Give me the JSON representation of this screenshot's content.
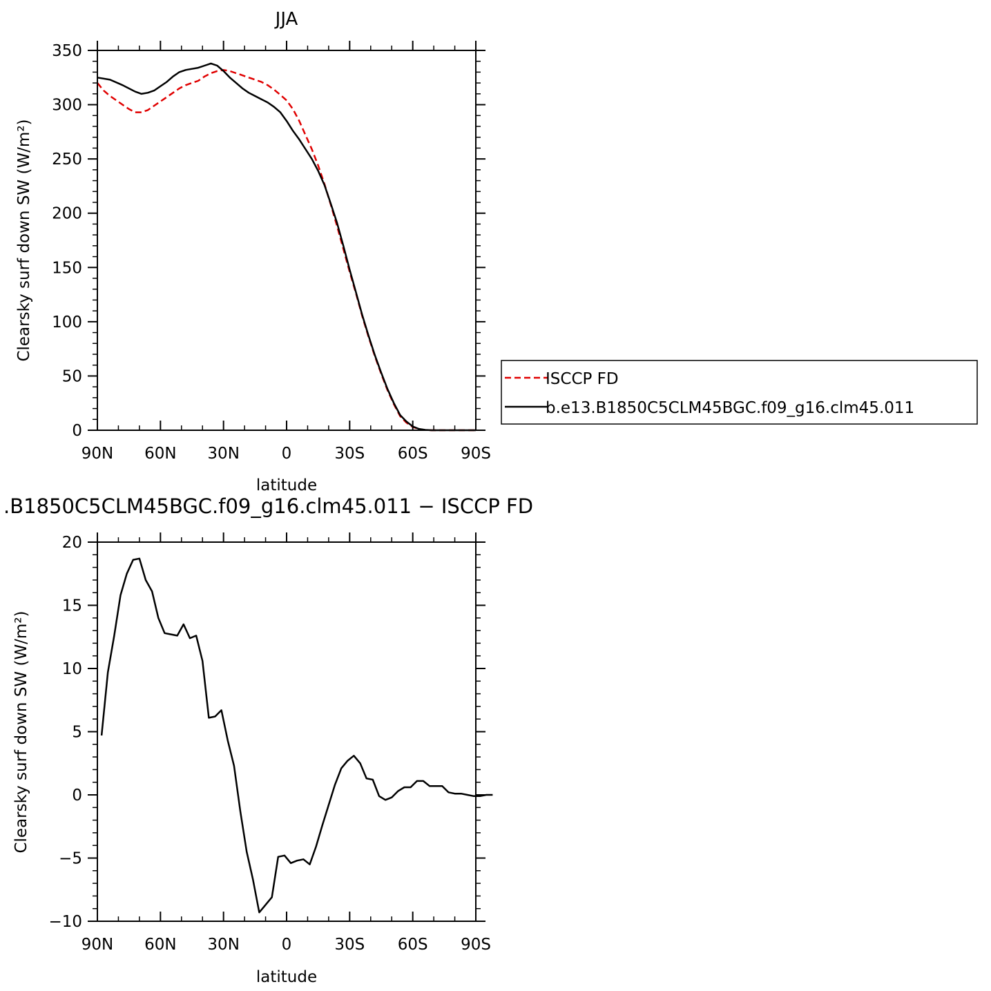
{
  "chart_data": [
    {
      "type": "line",
      "title": "JJA",
      "xlabel": "latitude",
      "ylabel": "Clearsky surf down SW (W/m²)",
      "x_axis": "latitude (positive = N, negative = S)",
      "xlim": [
        90,
        -90
      ],
      "ylim": [
        0,
        350
      ],
      "x_ticks": [
        90,
        60,
        30,
        0,
        -30,
        -60,
        -90
      ],
      "x_tick_labels": [
        "90N",
        "60N",
        "30N",
        "0",
        "30S",
        "60S",
        "90S"
      ],
      "y_ticks": [
        0,
        50,
        100,
        150,
        200,
        250,
        300,
        350
      ],
      "y_tick_labels": [
        "0",
        "50",
        "100",
        "150",
        "200",
        "250",
        "300",
        "350"
      ],
      "legend_position": "right",
      "series": [
        {
          "name": "ISCCP FD",
          "color": "#e00000",
          "dash": true,
          "points": [
            [
              90,
              320
            ],
            [
              87,
              313
            ],
            [
              84,
              308
            ],
            [
              81,
              304
            ],
            [
              78,
              300
            ],
            [
              75,
              296
            ],
            [
              72,
              293
            ],
            [
              69,
              293
            ],
            [
              66,
              295
            ],
            [
              63,
              299
            ],
            [
              60,
              303
            ],
            [
              57,
              307
            ],
            [
              54,
              311
            ],
            [
              51,
              315
            ],
            [
              48,
              318
            ],
            [
              45,
              320
            ],
            [
              42,
              322
            ],
            [
              39,
              326
            ],
            [
              36,
              329
            ],
            [
              33,
              331
            ],
            [
              30,
              332
            ],
            [
              27,
              331
            ],
            [
              24,
              329
            ],
            [
              21,
              327
            ],
            [
              18,
              325
            ],
            [
              15,
              323
            ],
            [
              12,
              321
            ],
            [
              9,
              318
            ],
            [
              6,
              314
            ],
            [
              3,
              309
            ],
            [
              0,
              304
            ],
            [
              -3,
              296
            ],
            [
              -6,
              285
            ],
            [
              -9,
              272
            ],
            [
              -12,
              259
            ],
            [
              -15,
              244
            ],
            [
              -18,
              227
            ],
            [
              -21,
              208
            ],
            [
              -24,
              188
            ],
            [
              -27,
              167
            ],
            [
              -30,
              146
            ],
            [
              -33,
              126
            ],
            [
              -36,
              105
            ],
            [
              -39,
              86
            ],
            [
              -42,
              68
            ],
            [
              -45,
              52
            ],
            [
              -48,
              37
            ],
            [
              -51,
              24
            ],
            [
              -54,
              13
            ],
            [
              -57,
              7
            ],
            [
              -60,
              3
            ],
            [
              -63,
              1
            ],
            [
              -66,
              0.2
            ],
            [
              -69,
              0
            ],
            [
              -72,
              0
            ],
            [
              -75,
              0
            ],
            [
              -78,
              0
            ],
            [
              -81,
              0
            ],
            [
              -84,
              0
            ],
            [
              -87,
              0
            ],
            [
              -90,
              0
            ]
          ]
        },
        {
          "name": "b.e13.B1850C5CLM45BGC.f09_g16.clm45.011",
          "color": "#000000",
          "dash": false,
          "points": [
            [
              90,
              325
            ],
            [
              84,
              323
            ],
            [
              78,
              318
            ],
            [
              72,
              312
            ],
            [
              69,
              310
            ],
            [
              66,
              311
            ],
            [
              63,
              313
            ],
            [
              60,
              317
            ],
            [
              57,
              321
            ],
            [
              54,
              326
            ],
            [
              51,
              330
            ],
            [
              48,
              332
            ],
            [
              45,
              333
            ],
            [
              42,
              334
            ],
            [
              39,
              336
            ],
            [
              36,
              338
            ],
            [
              33,
              336
            ],
            [
              30,
              331
            ],
            [
              27,
              325
            ],
            [
              24,
              320
            ],
            [
              21,
              315
            ],
            [
              18,
              311
            ],
            [
              15,
              308
            ],
            [
              12,
              305
            ],
            [
              9,
              302
            ],
            [
              6,
              298
            ],
            [
              3,
              293
            ],
            [
              0,
              285
            ],
            [
              -3,
              276
            ],
            [
              -6,
              268
            ],
            [
              -9,
              259
            ],
            [
              -12,
              250
            ],
            [
              -15,
              239
            ],
            [
              -18,
              226
            ],
            [
              -21,
              209
            ],
            [
              -24,
              191
            ],
            [
              -27,
              170
            ],
            [
              -30,
              148
            ],
            [
              -33,
              127
            ],
            [
              -36,
              106
            ],
            [
              -39,
              87
            ],
            [
              -42,
              69
            ],
            [
              -45,
              53
            ],
            [
              -48,
              38
            ],
            [
              -51,
              25
            ],
            [
              -54,
              14
            ],
            [
              -57,
              8
            ],
            [
              -60,
              3.5
            ],
            [
              -63,
              1.2
            ],
            [
              -66,
              0.3
            ],
            [
              -69,
              0
            ],
            [
              -72,
              0
            ],
            [
              -75,
              0
            ],
            [
              -78,
              0
            ],
            [
              -81,
              0
            ],
            [
              -84,
              0
            ],
            [
              -87,
              0
            ],
            [
              -90,
              0
            ]
          ]
        }
      ]
    },
    {
      "type": "line",
      "title": ".B1850C5CLM45BGC.f09_g16.clm45.011 − ISCCP FD",
      "xlabel": "latitude",
      "ylabel": "Clearsky surf down SW (W/m²)",
      "xlim": [
        90,
        -90
      ],
      "ylim": [
        -10,
        20
      ],
      "x_ticks": [
        90,
        60,
        30,
        0,
        -30,
        -60,
        -90
      ],
      "x_tick_labels": [
        "90N",
        "60N",
        "30N",
        "0",
        "30S",
        "60S",
        "90S"
      ],
      "y_ticks": [
        -10,
        -5,
        0,
        5,
        10,
        15,
        20
      ],
      "y_tick_labels": [
        "−10",
        "−5",
        "0",
        "5",
        "10",
        "15",
        "20"
      ],
      "series": [
        {
          "color": "#000000",
          "dash": false,
          "points": [
            [
              88,
              4.7
            ],
            [
              85,
              9.7
            ],
            [
              82,
              12.6
            ],
            [
              79,
              15.8
            ],
            [
              76,
              17.5
            ],
            [
              73,
              18.6
            ],
            [
              70,
              18.7
            ],
            [
              67,
              17.0
            ],
            [
              64,
              16.1
            ],
            [
              61,
              14.0
            ],
            [
              58,
              12.8
            ],
            [
              55,
              12.7
            ],
            [
              52,
              12.6
            ],
            [
              49,
              13.5
            ],
            [
              46,
              12.4
            ],
            [
              43,
              12.6
            ],
            [
              40,
              10.6
            ],
            [
              37,
              6.1
            ],
            [
              34,
              6.2
            ],
            [
              31,
              6.7
            ],
            [
              28,
              4.3
            ],
            [
              25,
              2.3
            ],
            [
              22,
              -1.3
            ],
            [
              19,
              -4.5
            ],
            [
              16,
              -6.7
            ],
            [
              13,
              -9.3
            ],
            [
              10,
              -8.7
            ],
            [
              7,
              -8.1
            ],
            [
              4,
              -4.9
            ],
            [
              1,
              -4.8
            ],
            [
              -2,
              -5.4
            ],
            [
              -5,
              -5.2
            ],
            [
              -8,
              -5.1
            ],
            [
              -11,
              -5.5
            ],
            [
              -14,
              -4.1
            ],
            [
              -17,
              -2.4
            ],
            [
              -20,
              -0.8
            ],
            [
              -23,
              0.8
            ],
            [
              -26,
              2.1
            ],
            [
              -29,
              2.7
            ],
            [
              -32,
              3.1
            ],
            [
              -35,
              2.5
            ],
            [
              -38,
              1.3
            ],
            [
              -41,
              1.2
            ],
            [
              -44,
              -0.1
            ],
            [
              -47,
              -0.4
            ],
            [
              -50,
              -0.2
            ],
            [
              -53,
              0.3
            ],
            [
              -56,
              0.6
            ],
            [
              -59,
              0.6
            ],
            [
              -62,
              1.1
            ],
            [
              -65,
              1.1
            ],
            [
              -68,
              0.7
            ],
            [
              -71,
              0.7
            ],
            [
              -74,
              0.7
            ],
            [
              -77,
              0.2
            ],
            [
              -80,
              0.1
            ],
            [
              -83,
              0.1
            ],
            [
              -86,
              0.0
            ],
            [
              -89,
              -0.1
            ],
            [
              -92,
              -0.1
            ],
            [
              -95,
              0.0
            ],
            [
              -98,
              0.0
            ]
          ]
        }
      ]
    }
  ]
}
